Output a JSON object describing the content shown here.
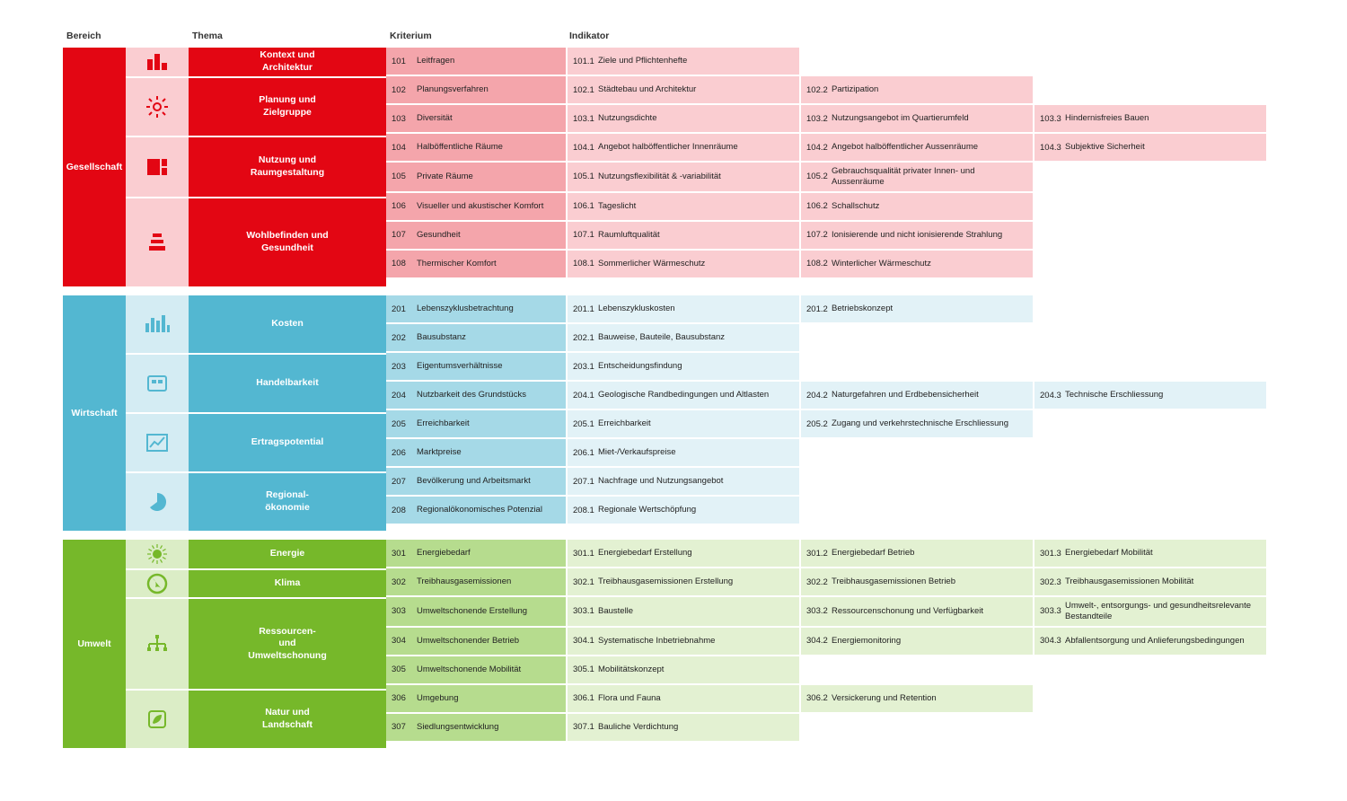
{
  "headers": {
    "bereich": "Bereich",
    "thema": "Thema",
    "kriterium": "Kriterium",
    "indikator": "Indikator"
  },
  "colors": {
    "red": {
      "dark": "#e30613",
      "mid": "#f4a5ab",
      "light": "#facdd1"
    },
    "blue": {
      "dark": "#53b7d1",
      "mid": "#a5d9e7",
      "light": "#e2f2f7"
    },
    "green": {
      "dark": "#76b82a",
      "mid": "#b6dc8e",
      "light": "#e3f1d2"
    }
  },
  "sections": [
    {
      "key": "r",
      "bereich": "Gesellschaft",
      "themes": [
        {
          "icon": "bars",
          "label": "Kontext und Architektur",
          "rows": [
            {
              "cnum": "101",
              "ctxt": "Leitfragen",
              "inds": [
                [
                  "101.1",
                  "Ziele und Pflichtenhefte"
                ]
              ]
            }
          ]
        },
        {
          "icon": "sun",
          "label": "Planung und Zielgruppe",
          "rows": [
            {
              "cnum": "102",
              "ctxt": "Planungsverfahren",
              "inds": [
                [
                  "102.1",
                  "Städtebau und Architektur"
                ],
                [
                  "102.2",
                  "Partizipation"
                ]
              ]
            },
            {
              "cnum": "103",
              "ctxt": "Diversität",
              "inds": [
                [
                  "103.1",
                  "Nutzungsdichte"
                ],
                [
                  "103.2",
                  "Nutzungsangebot im Quartierumfeld"
                ],
                [
                  "103.3",
                  "Hindernisfreies Bauen"
                ]
              ]
            }
          ]
        },
        {
          "icon": "layout",
          "label": "Nutzung und Raumgestaltung",
          "rows": [
            {
              "cnum": "104",
              "ctxt": "Halböffentliche Räume",
              "inds": [
                [
                  "104.1",
                  "Angebot halböffentlicher Innenräume"
                ],
                [
                  "104.2",
                  "Angebot halböffentlicher Aussenräume"
                ],
                [
                  "104.3",
                  "Subjektive Sicherheit"
                ]
              ]
            },
            {
              "cnum": "105",
              "ctxt": "Private Räume",
              "inds": [
                [
                  "105.1",
                  "Nutzungsflexibilität & -variabilität"
                ],
                [
                  "105.2",
                  "Gebrauchsqualität privater Innen- und Aussenräume"
                ]
              ]
            }
          ]
        },
        {
          "icon": "stack",
          "label": "Wohlbefinden und Gesundheit",
          "rows": [
            {
              "cnum": "106",
              "ctxt": "Visueller und akustischer Komfort",
              "inds": [
                [
                  "106.1",
                  "Tageslicht"
                ],
                [
                  "106.2",
                  "Schallschutz"
                ]
              ]
            },
            {
              "cnum": "107",
              "ctxt": "Gesundheit",
              "inds": [
                [
                  "107.1",
                  "Raumluftqualität"
                ],
                [
                  "107.2",
                  "Ionisierende und nicht ionisierende Strahlung"
                ]
              ]
            },
            {
              "cnum": "108",
              "ctxt": "Thermischer Komfort",
              "inds": [
                [
                  "108.1",
                  "Sommerlicher Wärmeschutz"
                ],
                [
                  "108.2",
                  "Winterlicher Wärmeschutz"
                ]
              ]
            }
          ]
        }
      ]
    },
    {
      "key": "b",
      "bereich": "Wirtschaft",
      "themes": [
        {
          "icon": "chart",
          "label": "Kosten",
          "rows": [
            {
              "cnum": "201",
              "ctxt": "Lebenszyklusbetrachtung",
              "inds": [
                [
                  "201.1",
                  "Lebenszykluskosten"
                ],
                [
                  "201.2",
                  "Betriebskonzept"
                ]
              ]
            },
            {
              "cnum": "202",
              "ctxt": "Bausubstanz",
              "inds": [
                [
                  "202.1",
                  "Bauweise, Bauteile, Bausubstanz"
                ]
              ]
            }
          ]
        },
        {
          "icon": "box",
          "label": "Handelbarkeit",
          "rows": [
            {
              "cnum": "203",
              "ctxt": "Eigentumsverhältnisse",
              "inds": [
                [
                  "203.1",
                  "Entscheidungsfindung"
                ]
              ]
            },
            {
              "cnum": "204",
              "ctxt": "Nutzbarkeit des Grundstücks",
              "inds": [
                [
                  "204.1",
                  "Geologische Randbedingungen und Altlasten"
                ],
                [
                  "204.2",
                  "Naturgefahren und Erdbebensicherheit"
                ],
                [
                  "204.3",
                  "Technische Erschliessung"
                ]
              ]
            }
          ]
        },
        {
          "icon": "trend",
          "label": "Ertragspotential",
          "rows": [
            {
              "cnum": "205",
              "ctxt": "Erreichbarkeit",
              "inds": [
                [
                  "205.1",
                  "Erreichbarkeit"
                ],
                [
                  "205.2",
                  "Zugang und verkehrstechnische Erschliessung"
                ]
              ]
            },
            {
              "cnum": "206",
              "ctxt": "Marktpreise",
              "inds": [
                [
                  "206.1",
                  "Miet-/Verkaufspreise"
                ]
              ]
            }
          ]
        },
        {
          "icon": "pie",
          "label": "Regional- ökonomie",
          "rows": [
            {
              "cnum": "207",
              "ctxt": "Bevölkerung und Arbeitsmarkt",
              "inds": [
                [
                  "207.1",
                  "Nachfrage und Nutzungsangebot"
                ]
              ]
            },
            {
              "cnum": "208",
              "ctxt": "Regionalökonomisches Potenzial",
              "inds": [
                [
                  "208.1",
                  "Regionale Wertschöpfung"
                ]
              ]
            }
          ]
        }
      ]
    },
    {
      "key": "g",
      "bereich": "Umwelt",
      "themes": [
        {
          "icon": "sunrays",
          "label": "Energie",
          "rows": [
            {
              "cnum": "301",
              "ctxt": "Energiebedarf",
              "inds": [
                [
                  "301.1",
                  "Energiebedarf Erstellung"
                ],
                [
                  "301.2",
                  "Energiebedarf Betrieb"
                ],
                [
                  "301.3",
                  "Energiebedarf Mobilität"
                ]
              ]
            }
          ]
        },
        {
          "icon": "globe",
          "label": "Klima",
          "rows": [
            {
              "cnum": "302",
              "ctxt": "Treibhausgasemissionen",
              "inds": [
                [
                  "302.1",
                  "Treibhausgasemissionen Erstellung"
                ],
                [
                  "302.2",
                  "Treibhausgasemissionen Betrieb"
                ],
                [
                  "302.3",
                  "Treibhausgasemissionen Mobilität"
                ]
              ]
            }
          ]
        },
        {
          "icon": "tree",
          "label": "Ressourcen- und Umweltschonung",
          "rows": [
            {
              "cnum": "303",
              "ctxt": "Umweltschonende Erstellung",
              "inds": [
                [
                  "303.1",
                  "Baustelle"
                ],
                [
                  "303.2",
                  "Ressourcenschonung und Verfügbarkeit"
                ],
                [
                  "303.3",
                  "Umwelt-, entsorgungs- und gesundheitsrelevante Bestandteile"
                ]
              ]
            },
            {
              "cnum": "304",
              "ctxt": "Umweltschonender Betrieb",
              "inds": [
                [
                  "304.1",
                  "Systematische Inbetriebnahme"
                ],
                [
                  "304.2",
                  "Energiemonitoring"
                ],
                [
                  "304.3",
                  "Abfallentsorgung und Anlieferungsbedingungen"
                ]
              ]
            },
            {
              "cnum": "305",
              "ctxt": "Umweltschonende Mobilität",
              "inds": [
                [
                  "305.1",
                  "Mobilitätskonzept"
                ]
              ]
            }
          ]
        },
        {
          "icon": "leaf",
          "label": "Natur und Landschaft",
          "rows": [
            {
              "cnum": "306",
              "ctxt": "Umgebung",
              "inds": [
                [
                  "306.1",
                  "Flora und Fauna"
                ],
                [
                  "306.2",
                  "Versickerung und Retention"
                ]
              ]
            },
            {
              "cnum": "307",
              "ctxt": "Siedlungsentwicklung",
              "inds": [
                [
                  "307.1",
                  "Bauliche Verdichtung"
                ]
              ]
            }
          ]
        }
      ]
    }
  ]
}
